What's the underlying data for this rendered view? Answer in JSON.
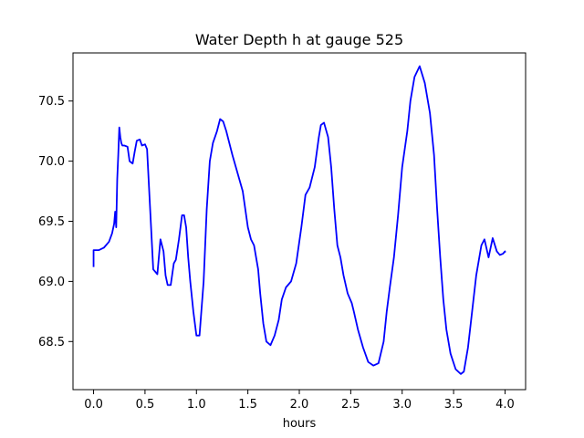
{
  "chart_data": {
    "type": "line",
    "title": "Water Depth h at gauge 525",
    "xlabel": "hours",
    "ylabel": "",
    "xlim": [
      -0.2,
      4.2
    ],
    "ylim": [
      68.1,
      70.9
    ],
    "grid": false,
    "line_color": "#0000ff",
    "xticks": [
      0.0,
      0.5,
      1.0,
      1.5,
      2.0,
      2.5,
      3.0,
      3.5,
      4.0
    ],
    "xtick_labels": [
      "0.0",
      "0.5",
      "1.0",
      "1.5",
      "2.0",
      "2.5",
      "3.0",
      "3.5",
      "4.0"
    ],
    "yticks": [
      68.5,
      69.0,
      69.5,
      70.0,
      70.5
    ],
    "ytick_labels": [
      "68.5",
      "69.0",
      "69.5",
      "70.0",
      "70.5"
    ],
    "series": [
      {
        "name": "",
        "x": [
          0.0,
          0.0,
          0.05,
          0.1,
          0.15,
          0.18,
          0.2,
          0.21,
          0.22,
          0.23,
          0.24,
          0.25,
          0.26,
          0.27,
          0.28,
          0.3,
          0.33,
          0.35,
          0.38,
          0.4,
          0.42,
          0.45,
          0.47,
          0.5,
          0.52,
          0.55,
          0.58,
          0.62,
          0.65,
          0.68,
          0.7,
          0.72,
          0.75,
          0.78,
          0.8,
          0.83,
          0.86,
          0.88,
          0.9,
          0.92,
          0.94,
          0.97,
          1.0,
          1.03,
          1.07,
          1.1,
          1.13,
          1.16,
          1.2,
          1.23,
          1.26,
          1.29,
          1.32,
          1.35,
          1.4,
          1.45,
          1.5,
          1.53,
          1.56,
          1.58,
          1.6,
          1.62,
          1.65,
          1.68,
          1.72,
          1.76,
          1.8,
          1.83,
          1.87,
          1.92,
          1.97,
          2.02,
          2.06,
          2.1,
          2.15,
          2.19,
          2.21,
          2.24,
          2.28,
          2.31,
          2.34,
          2.37,
          2.4,
          2.43,
          2.47,
          2.51,
          2.53,
          2.57,
          2.62,
          2.67,
          2.72,
          2.77,
          2.82,
          2.85,
          2.88,
          2.92,
          2.96,
          3.0,
          3.05,
          3.08,
          3.12,
          3.17,
          3.22,
          3.27,
          3.31,
          3.34,
          3.37,
          3.4,
          3.43,
          3.47,
          3.52,
          3.57,
          3.6,
          3.64,
          3.68,
          3.72,
          3.77,
          3.8,
          3.84,
          3.88,
          3.92,
          3.95,
          3.98,
          3.99,
          4.0,
          4.0
        ],
        "y": [
          69.12,
          69.26,
          69.26,
          69.28,
          69.33,
          69.4,
          69.48,
          69.58,
          69.45,
          69.85,
          70.05,
          70.28,
          70.2,
          70.15,
          70.13,
          70.13,
          70.12,
          70.0,
          69.98,
          70.08,
          70.17,
          70.18,
          70.13,
          70.14,
          70.1,
          69.6,
          69.1,
          69.06,
          69.35,
          69.25,
          69.05,
          68.97,
          68.97,
          69.15,
          69.18,
          69.35,
          69.55,
          69.55,
          69.45,
          69.2,
          69.0,
          68.75,
          68.55,
          68.55,
          69.0,
          69.6,
          70.0,
          70.15,
          70.25,
          70.35,
          70.33,
          70.25,
          70.15,
          70.05,
          69.9,
          69.75,
          69.45,
          69.35,
          69.3,
          69.2,
          69.1,
          68.9,
          68.65,
          68.5,
          68.47,
          68.55,
          68.68,
          68.85,
          68.95,
          69.0,
          69.15,
          69.45,
          69.72,
          69.78,
          69.95,
          70.2,
          70.3,
          70.32,
          70.2,
          69.95,
          69.6,
          69.3,
          69.2,
          69.05,
          68.9,
          68.82,
          68.75,
          68.6,
          68.45,
          68.33,
          68.3,
          68.32,
          68.5,
          68.75,
          68.95,
          69.2,
          69.55,
          69.95,
          70.25,
          70.5,
          70.7,
          70.79,
          70.65,
          70.4,
          70.05,
          69.6,
          69.2,
          68.85,
          68.6,
          68.4,
          68.27,
          68.23,
          68.25,
          68.45,
          68.75,
          69.05,
          69.3,
          69.35,
          69.2,
          69.36,
          69.25,
          69.22,
          69.23,
          69.24,
          69.25,
          69.24
        ]
      }
    ]
  }
}
